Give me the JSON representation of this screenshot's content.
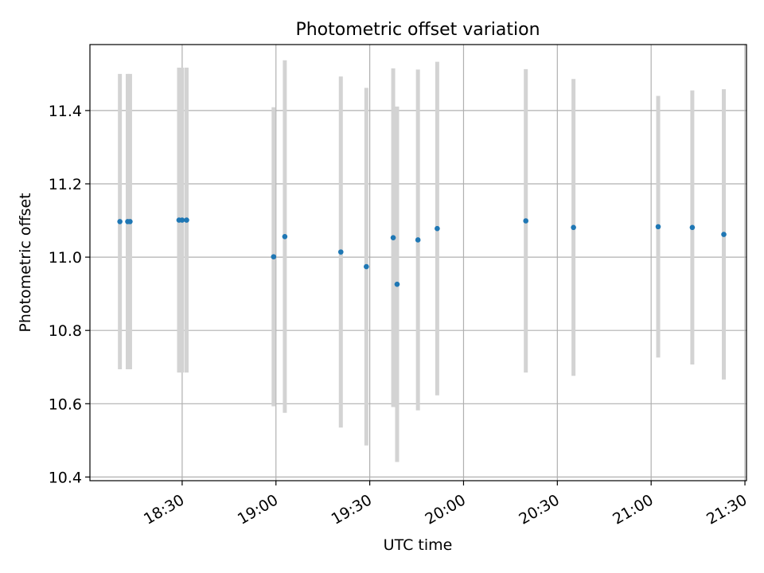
{
  "chart_data": {
    "type": "scatter",
    "title": "Photometric offset variation",
    "xlabel": "UTC time",
    "ylabel": "Photometric offset",
    "x_ticks": [
      "18:30",
      "19:00",
      "19:30",
      "20:00",
      "20:30",
      "21:00",
      "21:30"
    ],
    "y_ticks": [
      "10.4",
      "10.6",
      "10.8",
      "11.0",
      "11.2",
      "11.4"
    ],
    "xlim": [
      "18:00:30",
      "21:30:30"
    ],
    "ylim": [
      10.39,
      11.58
    ],
    "grid": true,
    "marker_color": "#1f77b4",
    "errorbar_color": "#d3d3d3",
    "points": [
      {
        "x": "18:10:05",
        "y": 11.097,
        "yerr": 0.403
      },
      {
        "x": "18:12:35",
        "y": 11.097,
        "yerr": 0.403
      },
      {
        "x": "18:13:20",
        "y": 11.097,
        "yerr": 0.403
      },
      {
        "x": "18:29:00",
        "y": 11.101,
        "yerr": 0.416
      },
      {
        "x": "18:30:00",
        "y": 11.101,
        "yerr": 0.416
      },
      {
        "x": "18:31:25",
        "y": 11.101,
        "yerr": 0.416
      },
      {
        "x": "18:59:15",
        "y": 11.001,
        "yerr": 0.408
      },
      {
        "x": "19:02:50",
        "y": 11.056,
        "yerr": 0.481
      },
      {
        "x": "19:20:45",
        "y": 11.014,
        "yerr": 0.479
      },
      {
        "x": "19:28:55",
        "y": 10.974,
        "yerr": 0.488
      },
      {
        "x": "19:37:30",
        "y": 11.053,
        "yerr": 0.462
      },
      {
        "x": "19:38:45",
        "y": 10.926,
        "yerr": 0.485
      },
      {
        "x": "19:45:25",
        "y": 11.047,
        "yerr": 0.465
      },
      {
        "x": "19:51:35",
        "y": 11.078,
        "yerr": 0.455
      },
      {
        "x": "20:19:55",
        "y": 11.099,
        "yerr": 0.414
      },
      {
        "x": "20:35:10",
        "y": 11.081,
        "yerr": 0.405
      },
      {
        "x": "21:02:15",
        "y": 11.083,
        "yerr": 0.357
      },
      {
        "x": "21:13:10",
        "y": 11.081,
        "yerr": 0.374
      },
      {
        "x": "21:23:15",
        "y": 11.062,
        "yerr": 0.396
      }
    ]
  }
}
